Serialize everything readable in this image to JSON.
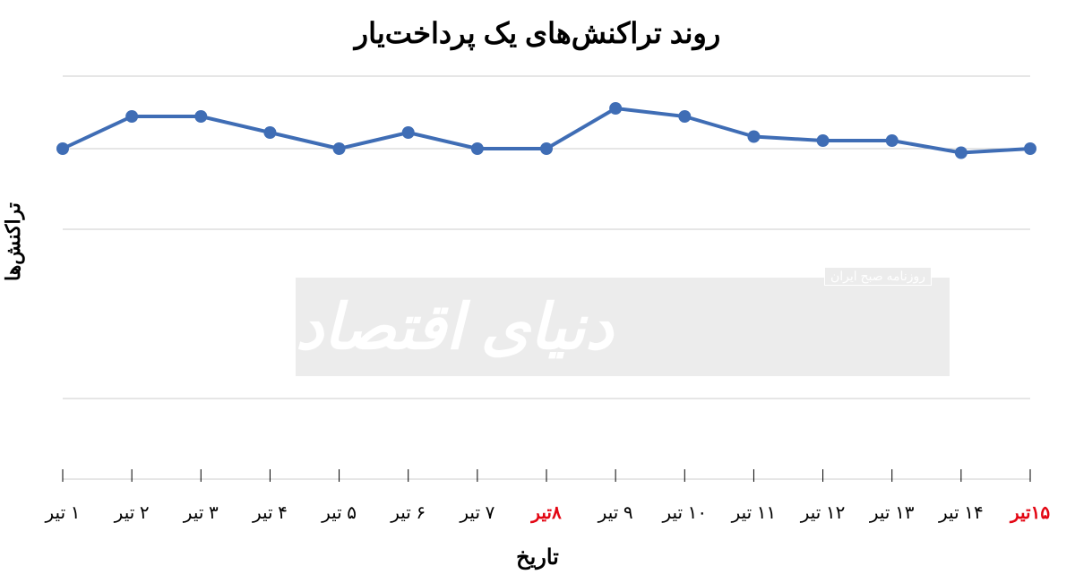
{
  "chart": {
    "type": "line",
    "title": "روند تراکنش‌های یک پرداخت‌یار",
    "title_fontsize": 32,
    "title_color": "#000000",
    "ylabel": "تراکنش‌ها",
    "xlabel": "تاریخ",
    "label_fontsize": 24,
    "label_color": "#000000",
    "background_color": "#ffffff",
    "grid_color": "#cccccc",
    "grid_line_width": 1,
    "line_color": "#3f6db5",
    "line_width": 4,
    "marker_style": "circle",
    "marker_size": 7,
    "marker_fill": "#3f6db5",
    "xlim": [
      0,
      14
    ],
    "ylim": [
      0,
      100
    ],
    "y_gridlines": [
      0,
      20,
      62,
      82,
      100
    ],
    "categories": [
      {
        "label": "۱ تیر",
        "value": 82,
        "highlight": false
      },
      {
        "label": "۲ تیر",
        "value": 90,
        "highlight": false
      },
      {
        "label": "۳ تیر",
        "value": 90,
        "highlight": false
      },
      {
        "label": "۴ تیر",
        "value": 86,
        "highlight": false
      },
      {
        "label": "۵ تیر",
        "value": 82,
        "highlight": false
      },
      {
        "label": "۶ تیر",
        "value": 86,
        "highlight": false
      },
      {
        "label": "۷ تیر",
        "value": 82,
        "highlight": false
      },
      {
        "label": "۸تیر",
        "value": 82,
        "highlight": true
      },
      {
        "label": "۹ تیر",
        "value": 92,
        "highlight": false
      },
      {
        "label": "۱۰ تیر",
        "value": 90,
        "highlight": false
      },
      {
        "label": "۱۱ تیر",
        "value": 85,
        "highlight": false
      },
      {
        "label": "۱۲ تیر",
        "value": 84,
        "highlight": false
      },
      {
        "label": "۱۳ تیر",
        "value": 84,
        "highlight": false
      },
      {
        "label": "۱۴ تیر",
        "value": 81,
        "highlight": false
      },
      {
        "label": "۱۵تیر",
        "value": 82,
        "highlight": true
      }
    ],
    "tick_fontsize": 20,
    "tick_color_normal": "#000000",
    "tick_color_highlight": "#e30613",
    "tick_mark_height": 14,
    "watermark": {
      "main": "دنیای اقتصاد",
      "sub": "روزنامه صبح ایران",
      "bg": "#e0e0e0",
      "fg": "#ffffff",
      "opacity": 0.6
    }
  }
}
